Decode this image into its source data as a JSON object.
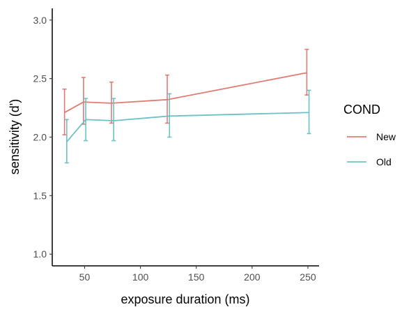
{
  "chart_data": {
    "type": "line",
    "xlabel": "exposure duration (ms)",
    "ylabel": "sensitivity (d')",
    "xlim": [
      21,
      260
    ],
    "ylim": [
      0.9,
      3.1
    ],
    "xticks": [
      50,
      100,
      150,
      200,
      250
    ],
    "yticks": [
      1.0,
      1.5,
      2.0,
      2.5,
      3.0
    ],
    "xtick_labels": [
      "50",
      "100",
      "150",
      "200",
      "250"
    ],
    "ytick_labels": [
      "1.0",
      "1.5",
      "2.0",
      "2.5",
      "3.0"
    ],
    "grid": false,
    "legend": {
      "title": "COND",
      "position": "right"
    },
    "series": [
      {
        "name": "New",
        "color": "#e07b74",
        "x": [
          33,
          50,
          75,
          125,
          250
        ],
        "y": [
          2.21,
          2.3,
          2.29,
          2.32,
          2.55
        ],
        "ymin": [
          2.02,
          2.11,
          2.12,
          2.12,
          2.36
        ],
        "ymax": [
          2.41,
          2.51,
          2.47,
          2.53,
          2.75
        ]
      },
      {
        "name": "Old",
        "color": "#6ec1c3",
        "x": [
          33,
          50,
          75,
          125,
          250
        ],
        "y": [
          1.96,
          2.15,
          2.14,
          2.18,
          2.21
        ],
        "ymin": [
          1.78,
          1.97,
          1.97,
          2.0,
          2.03
        ],
        "ymax": [
          2.15,
          2.33,
          2.33,
          2.37,
          2.4
        ]
      }
    ]
  }
}
